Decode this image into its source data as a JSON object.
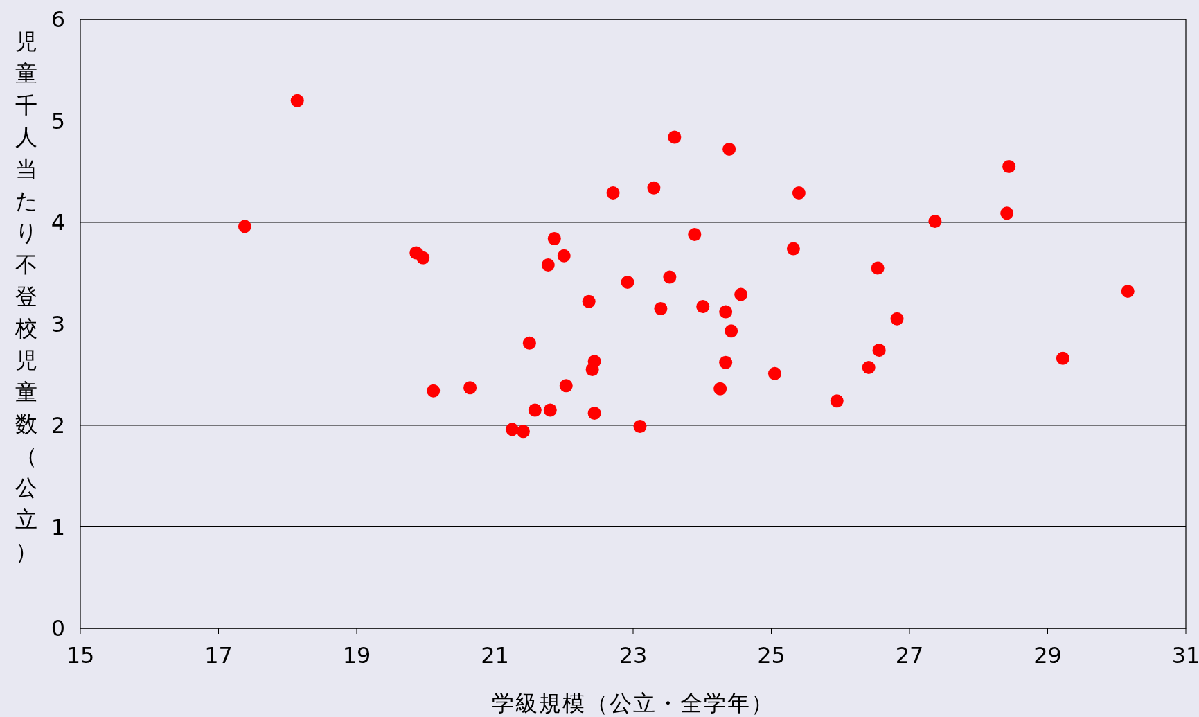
{
  "chart_data": {
    "type": "scatter",
    "xlabel": "学級規模（公立・全学年）",
    "ylabel": "児童千人当たり不登校児童数（公立）",
    "xlim": [
      15,
      31
    ],
    "ylim": [
      0,
      6
    ],
    "xticks": [
      15,
      17,
      19,
      21,
      23,
      25,
      27,
      29,
      31
    ],
    "yticks": [
      0,
      1,
      2,
      3,
      4,
      5,
      6
    ],
    "grid": "y",
    "marker": "circle",
    "x": [
      17.38,
      18.14,
      19.86,
      19.96,
      20.11,
      20.64,
      21.25,
      21.41,
      21.5,
      21.58,
      21.77,
      21.8,
      21.86,
      22.0,
      22.03,
      22.36,
      22.41,
      22.44,
      22.44,
      22.71,
      22.92,
      23.1,
      23.3,
      23.4,
      23.53,
      23.6,
      23.89,
      24.01,
      24.26,
      24.34,
      24.34,
      24.39,
      24.42,
      24.56,
      25.05,
      25.32,
      25.4,
      25.95,
      26.41,
      26.54,
      26.56,
      26.82,
      27.37,
      28.41,
      28.44,
      29.22,
      30.16
    ],
    "series": [
      {
        "color": "#ff0000",
        "values": [
          3.96,
          5.2,
          3.7,
          3.65,
          2.34,
          2.37,
          1.96,
          1.94,
          2.81,
          2.15,
          3.58,
          2.15,
          3.84,
          3.67,
          2.39,
          3.22,
          2.55,
          2.63,
          2.12,
          4.29,
          3.41,
          1.99,
          4.34,
          3.15,
          3.46,
          4.84,
          3.88,
          3.17,
          2.36,
          3.12,
          2.62,
          4.72,
          2.93,
          3.29,
          2.51,
          3.74,
          4.29,
          2.24,
          2.57,
          3.55,
          2.74,
          3.05,
          4.01,
          4.09,
          4.55,
          2.66,
          3.32
        ]
      }
    ]
  }
}
